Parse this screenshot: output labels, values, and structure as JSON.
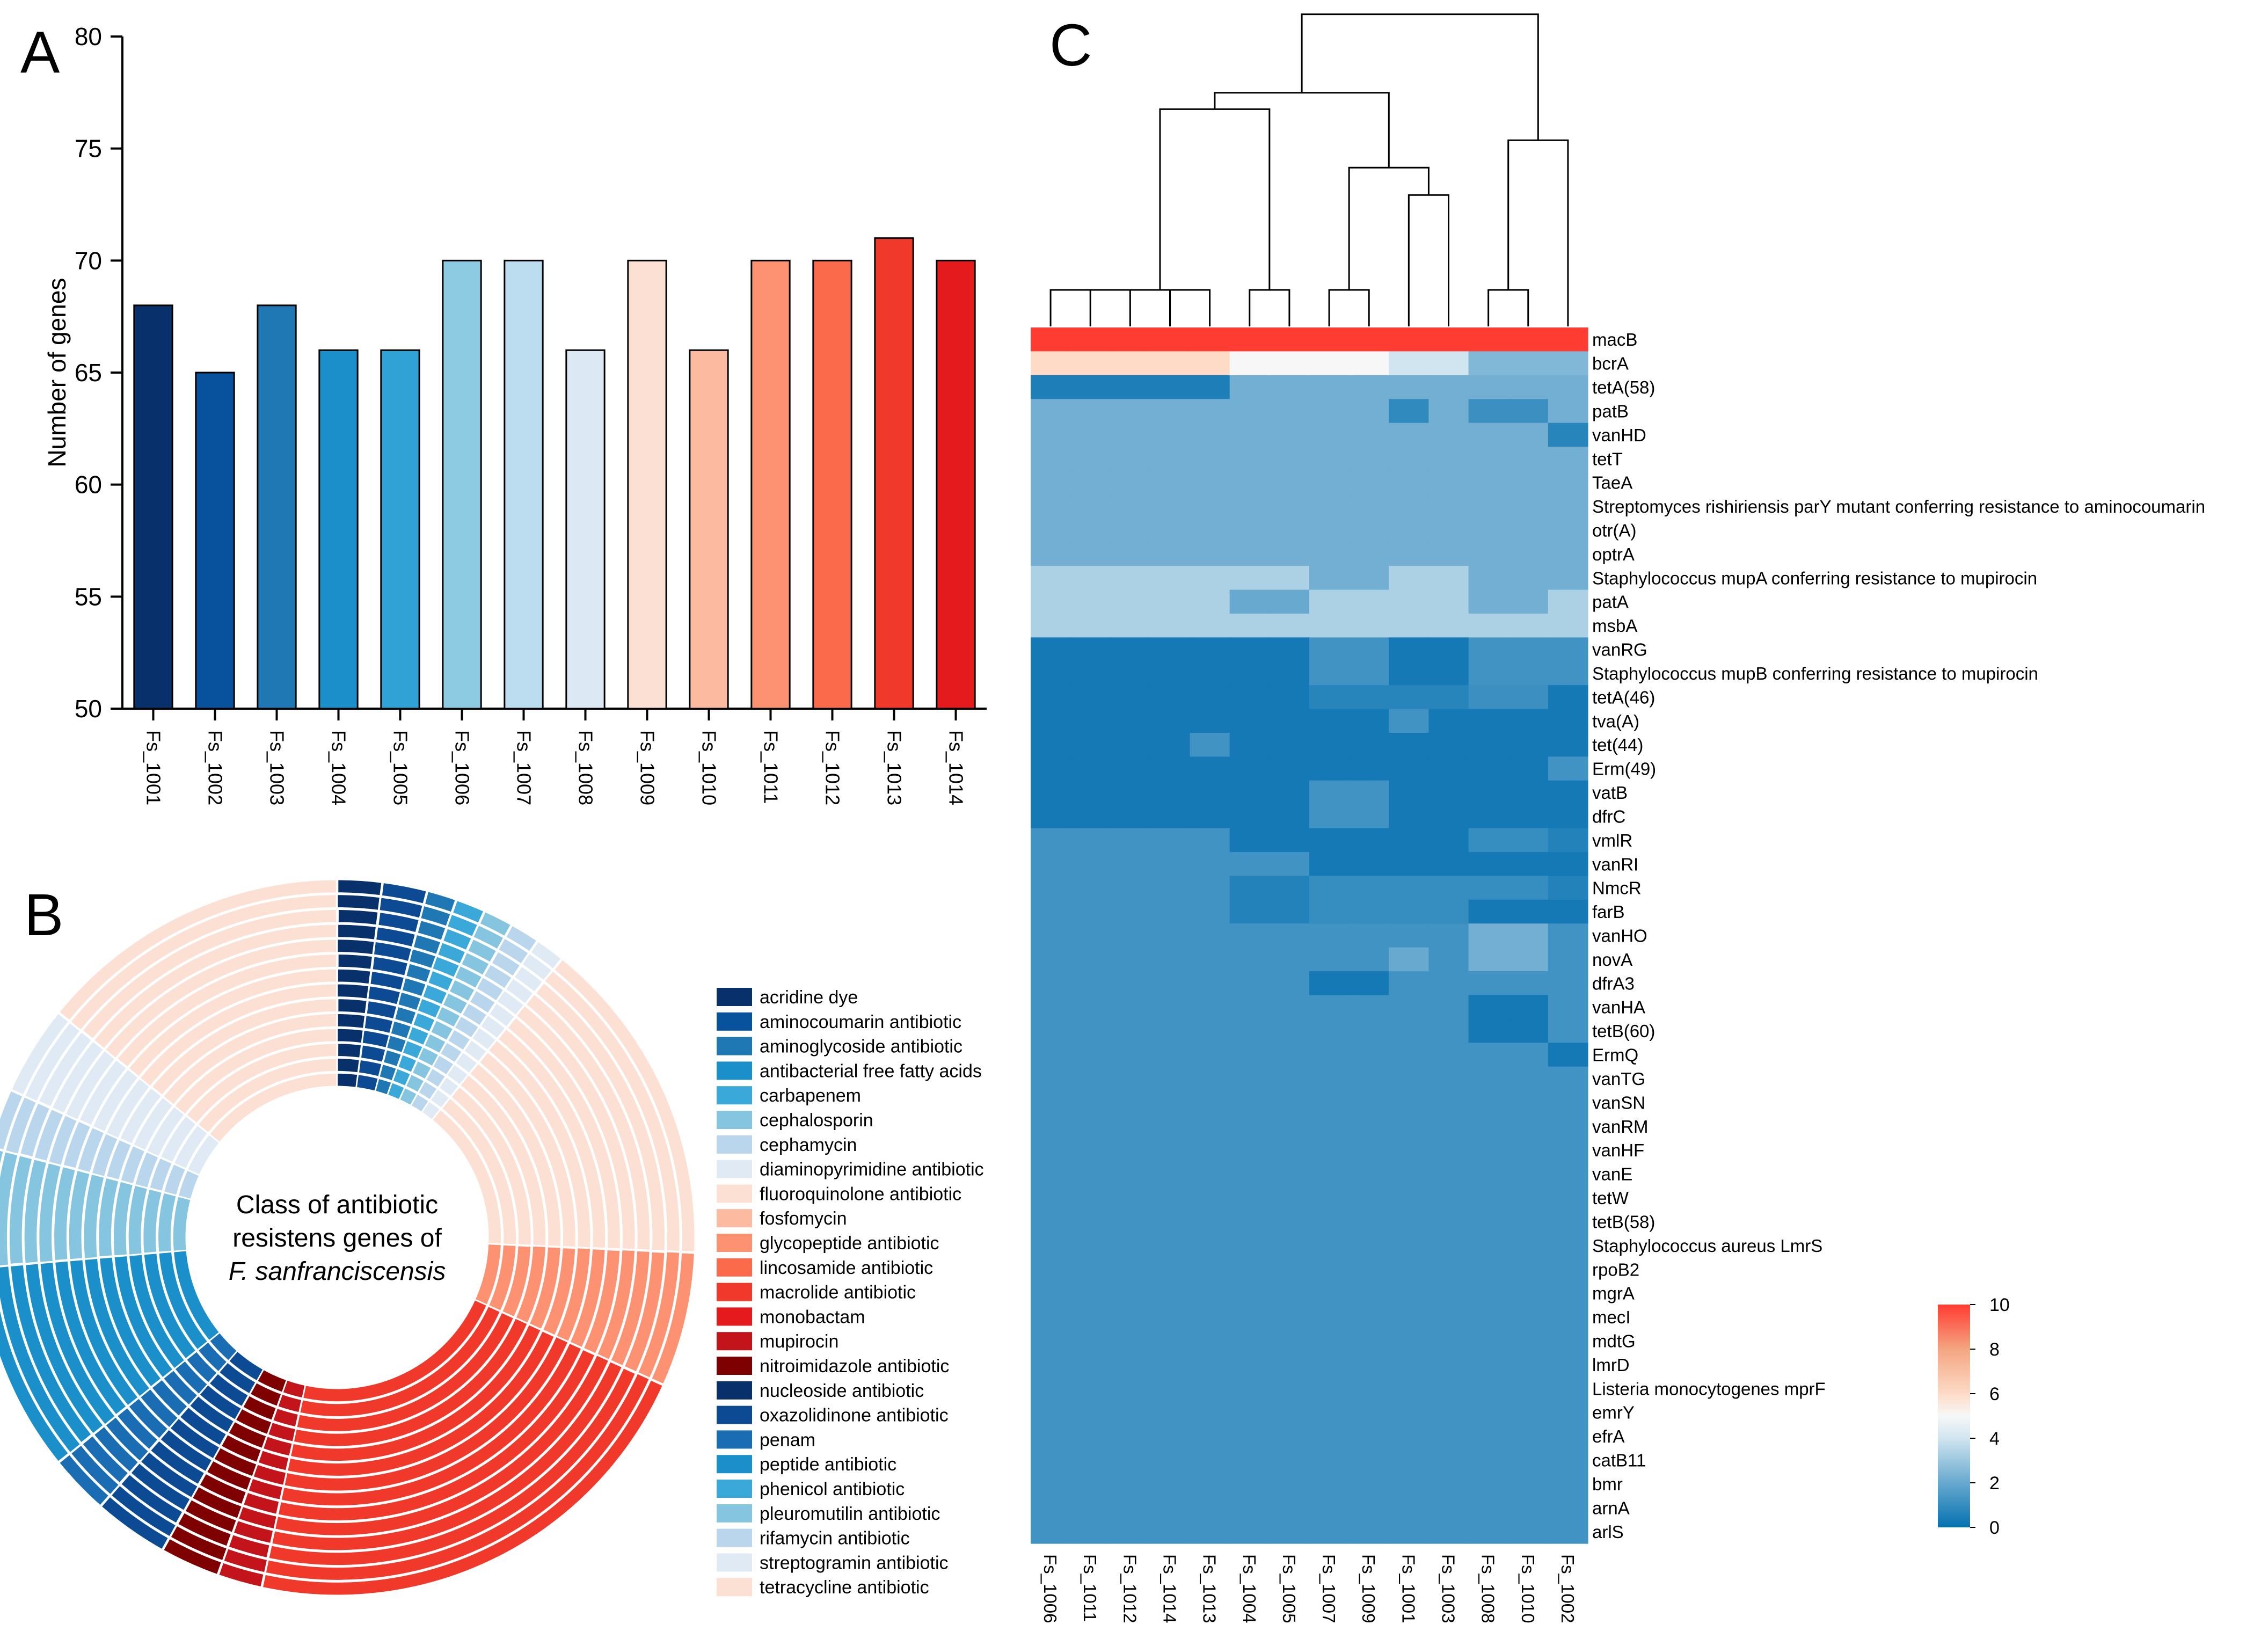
{
  "panel_labels": {
    "a": "A",
    "b": "B",
    "c": "C"
  },
  "chart_data": [
    {
      "id": "A",
      "type": "bar",
      "ylabel": "Number of genes",
      "ylim": [
        50,
        80
      ],
      "yticks": [
        50,
        55,
        60,
        65,
        70,
        75,
        80
      ],
      "categories": [
        "Fs_1001",
        "Fs_1002",
        "Fs_1003",
        "Fs_1004",
        "Fs_1005",
        "Fs_1006",
        "Fs_1007",
        "Fs_1008",
        "Fs_1009",
        "Fs_1010",
        "Fs_1011",
        "Fs_1012",
        "Fs_1013",
        "Fs_1014"
      ],
      "values": [
        68,
        65,
        68,
        66,
        66,
        70,
        70,
        66,
        70,
        66,
        70,
        70,
        71,
        70
      ],
      "colors": [
        "#08306b",
        "#08519c",
        "#1f78b4",
        "#1b8fc9",
        "#31a2d5",
        "#8ccbe2",
        "#bcdcef",
        "#dce9f5",
        "#fde0d4",
        "#fcbba1",
        "#fc9272",
        "#fb6a4a",
        "#f0392b",
        "#e41a1c"
      ]
    },
    {
      "id": "B",
      "type": "donut",
      "center_text": [
        "Class of antibiotic",
        "resistens genes of",
        "F. sanfranciscensis"
      ],
      "rings": 14,
      "legend": [
        {
          "label": "acridine dye",
          "color": "#08306b"
        },
        {
          "label": "aminocoumarin antibiotic",
          "color": "#08519c"
        },
        {
          "label": "aminoglycoside antibiotic",
          "color": "#1f78b4"
        },
        {
          "label": "antibacterial free fatty acids",
          "color": "#1b8fc9"
        },
        {
          "label": "carbapenem",
          "color": "#3aa8d8"
        },
        {
          "label": "cephalosporin",
          "color": "#86c5e0"
        },
        {
          "label": "cephamycin",
          "color": "#b9d6ec"
        },
        {
          "label": "diaminopyrimidine antibiotic",
          "color": "#dfeaf5"
        },
        {
          "label": "fluoroquinolone antibiotic",
          "color": "#fde0d4"
        },
        {
          "label": "fosfomycin",
          "color": "#fcbba1"
        },
        {
          "label": "glycopeptide antibiotic",
          "color": "#fc9272"
        },
        {
          "label": "lincosamide antibiotic",
          "color": "#fb6a4a"
        },
        {
          "label": "macrolide antibiotic",
          "color": "#f0392b"
        },
        {
          "label": "monobactam",
          "color": "#e41a1c"
        },
        {
          "label": "mupirocin",
          "color": "#c3141b"
        },
        {
          "label": "nitroimidazole antibiotic",
          "color": "#7f0000"
        },
        {
          "label": "nucleoside antibiotic",
          "color": "#08306b"
        },
        {
          "label": "oxazolidinone antibiotic",
          "color": "#0c4a93"
        },
        {
          "label": "penam",
          "color": "#1a6db3"
        },
        {
          "label": "peptide antibiotic",
          "color": "#1b8fc9"
        },
        {
          "label": "phenicol antibiotic",
          "color": "#3aa8d8"
        },
        {
          "label": "pleuromutilin antibiotic",
          "color": "#86c5e0"
        },
        {
          "label": "rifamycin antibiotic",
          "color": "#b9d6ec"
        },
        {
          "label": "streptogramin antibiotic",
          "color": "#dfeaf5"
        },
        {
          "label": "tetracycline antibiotic",
          "color": "#fde0d4"
        }
      ],
      "segments": [
        {
          "color": "#08306b",
          "weight": 3
        },
        {
          "color": "#0c4a93",
          "weight": 3
        },
        {
          "color": "#1f78b4",
          "weight": 2
        },
        {
          "color": "#3aa8d8",
          "weight": 2
        },
        {
          "color": "#86c5e0",
          "weight": 2
        },
        {
          "color": "#b9d6ec",
          "weight": 2
        },
        {
          "color": "#dfeaf5",
          "weight": 2
        },
        {
          "color": "#fde0d4",
          "weight": 22
        },
        {
          "color": "#fc9272",
          "weight": 9
        },
        {
          "color": "#f0392b",
          "weight": 32
        },
        {
          "color": "#c3141b",
          "weight": 3
        },
        {
          "color": "#7f0000",
          "weight": 4
        },
        {
          "color": "#0c4a93",
          "weight": 5
        },
        {
          "color": "#1a6db3",
          "weight": 4
        },
        {
          "color": "#1b8fc9",
          "weight": 14
        },
        {
          "color": "#86c5e0",
          "weight": 8
        },
        {
          "color": "#b9d6ec",
          "weight": 4
        },
        {
          "color": "#dfeaf5",
          "weight": 6
        },
        {
          "color": "#fde0d4",
          "weight": 21
        }
      ]
    },
    {
      "id": "C",
      "type": "heatmap",
      "columns": [
        "Fs_1006",
        "Fs_1011",
        "Fs_1012",
        "Fs_1014",
        "Fs_1013",
        "Fs_1004",
        "Fs_1005",
        "Fs_1007",
        "Fs_1009",
        "Fs_1001",
        "Fs_1003",
        "Fs_1008",
        "Fs_1010",
        "Fs_1002"
      ],
      "rows": [
        "macB",
        "bcrA",
        "tetA(58)",
        "patB",
        "vanHD",
        "tetT",
        "TaeA",
        "Streptomyces rishiriensis parY mutant conferring resistance to aminocoumarin",
        "otr(A)",
        "optrA",
        "Staphylococcus mupA conferring resistance to mupirocin",
        "patA",
        "msbA",
        "vanRG",
        "Staphylococcus mupB conferring resistance to mupirocin",
        "tetA(46)",
        "tva(A)",
        "tet(44)",
        "Erm(49)",
        "vatB",
        "dfrC",
        "vmlR",
        "vanRI",
        "NmcR",
        "farB",
        "vanHO",
        "novA",
        "dfrA3",
        "vanHA",
        "tetB(60)",
        "ErmQ",
        "vanTG",
        "vanSN",
        "vanRM",
        "vanHF",
        "vanE",
        "tetW",
        "tetB(58)",
        "Staphylococcus aureus LmrS",
        "rpoB2",
        "mgrA",
        "mecI",
        "mdtG",
        "lmrD",
        "Listeria monocytogenes mprF",
        "emrY",
        "efrA",
        "catB11",
        "bmr",
        "arnA",
        "arlS"
      ],
      "values": [
        [
          10,
          10,
          10,
          10,
          10,
          10,
          10,
          10,
          10,
          10,
          10,
          10,
          10,
          10
        ],
        [
          6,
          6,
          6,
          6,
          6,
          5,
          5,
          5,
          5,
          4,
          4,
          2.5,
          2.5,
          2.5
        ],
        [
          0.5,
          0.5,
          0.5,
          0.5,
          0.5,
          2.2,
          2.2,
          2.2,
          2.2,
          2.2,
          2.2,
          2.2,
          2.2,
          2.2
        ],
        [
          2.2,
          2.2,
          2.2,
          2.2,
          2.2,
          2.2,
          2.2,
          2.2,
          2.2,
          0.9,
          2.2,
          1.1,
          1.1,
          2.2
        ],
        [
          2.2,
          2.2,
          2.2,
          2.2,
          2.2,
          2.2,
          2.2,
          2.2,
          2.2,
          2.2,
          2.2,
          2.2,
          2.2,
          0.7
        ],
        [
          2.2,
          2.2,
          2.2,
          2.2,
          2.2,
          2.2,
          2.2,
          2.2,
          2.2,
          2.2,
          2.2,
          2.2,
          2.2,
          2.2
        ],
        [
          2.2,
          2.2,
          2.2,
          2.2,
          2.2,
          2.2,
          2.2,
          2.2,
          2.2,
          2.2,
          2.2,
          2.2,
          2.2,
          2.2
        ],
        [
          2.2,
          2.2,
          2.2,
          2.2,
          2.2,
          2.2,
          2.2,
          2.2,
          2.2,
          2.2,
          2.2,
          2.2,
          2.2,
          2.2
        ],
        [
          2.2,
          2.2,
          2.2,
          2.2,
          2.2,
          2.2,
          2.2,
          2.2,
          2.2,
          2.2,
          2.2,
          2.2,
          2.2,
          2.2
        ],
        [
          2.2,
          2.2,
          2.2,
          2.2,
          2.2,
          2.2,
          2.2,
          2.2,
          2.2,
          2.2,
          2.2,
          2.2,
          2.2,
          2.2
        ],
        [
          3.3,
          3.3,
          3.3,
          3.3,
          3.3,
          3.3,
          3.3,
          2.2,
          2.2,
          3.3,
          3.3,
          2.2,
          2.2,
          2.2
        ],
        [
          3.3,
          3.3,
          3.3,
          3.3,
          3.3,
          2.0,
          2.0,
          3.3,
          3.3,
          3.3,
          3.3,
          2.2,
          2.2,
          3.3
        ],
        [
          3.3,
          3.3,
          3.3,
          3.3,
          3.3,
          3.3,
          3.3,
          3.3,
          3.3,
          3.3,
          3.3,
          3.3,
          3.3,
          3.3
        ],
        [
          0.3,
          0.3,
          0.3,
          0.3,
          0.3,
          0.3,
          0.3,
          1.2,
          1.2,
          0.3,
          0.3,
          1.2,
          1.2,
          1.2
        ],
        [
          0.3,
          0.3,
          0.3,
          0.3,
          0.3,
          0.3,
          0.3,
          1.2,
          1.2,
          0.3,
          0.3,
          1.2,
          1.2,
          1.2
        ],
        [
          0.3,
          0.3,
          0.3,
          0.3,
          0.3,
          0.3,
          0.3,
          0.7,
          0.7,
          0.7,
          0.7,
          1.1,
          1.1,
          0.3
        ],
        [
          0.3,
          0.3,
          0.3,
          0.3,
          0.3,
          0.3,
          0.3,
          0.3,
          0.3,
          1.2,
          0.3,
          0.3,
          0.3,
          0.3
        ],
        [
          0.3,
          0.3,
          0.3,
          0.3,
          1.2,
          0.3,
          0.3,
          0.3,
          0.3,
          0.3,
          0.3,
          0.3,
          0.3,
          0.3
        ],
        [
          0.3,
          0.3,
          0.3,
          0.3,
          0.3,
          0.3,
          0.3,
          0.3,
          0.3,
          0.3,
          0.3,
          0.3,
          0.3,
          1.2
        ],
        [
          0.3,
          0.3,
          0.3,
          0.3,
          0.3,
          0.3,
          0.3,
          1.2,
          1.2,
          0.3,
          0.3,
          0.3,
          0.3,
          0.3
        ],
        [
          0.3,
          0.3,
          0.3,
          0.3,
          0.3,
          0.3,
          0.3,
          1.2,
          1.2,
          0.3,
          0.3,
          0.3,
          0.3,
          0.3
        ],
        [
          1.2,
          1.2,
          1.2,
          1.2,
          1.2,
          0.3,
          0.3,
          0.3,
          0.3,
          0.3,
          0.3,
          1.0,
          1.0,
          0.6
        ],
        [
          1.2,
          1.2,
          1.2,
          1.2,
          1.2,
          1.2,
          1.2,
          0.3,
          0.3,
          0.3,
          0.3,
          0.3,
          0.3,
          0.3
        ],
        [
          1.2,
          1.2,
          1.2,
          1.2,
          1.2,
          0.6,
          0.6,
          1.0,
          1.0,
          1.0,
          1.0,
          1.0,
          1.0,
          0.6
        ],
        [
          1.2,
          1.2,
          1.2,
          1.2,
          1.2,
          0.6,
          0.6,
          1.0,
          1.0,
          1.0,
          1.0,
          0.3,
          0.3,
          0.3
        ],
        [
          1.2,
          1.2,
          1.2,
          1.2,
          1.2,
          1.2,
          1.2,
          1.2,
          1.2,
          1.2,
          1.2,
          2.2,
          2.2,
          1.2
        ],
        [
          1.2,
          1.2,
          1.2,
          1.2,
          1.2,
          1.2,
          1.2,
          1.2,
          1.2,
          2.0,
          1.2,
          2.2,
          2.2,
          1.2
        ],
        [
          1.2,
          1.2,
          1.2,
          1.2,
          1.2,
          1.2,
          1.2,
          0.3,
          0.3,
          1.2,
          1.2,
          1.2,
          1.2,
          1.2
        ],
        [
          1.2,
          1.2,
          1.2,
          1.2,
          1.2,
          1.2,
          1.2,
          1.2,
          1.2,
          1.2,
          1.2,
          0.3,
          0.3,
          1.2
        ],
        [
          1.2,
          1.2,
          1.2,
          1.2,
          1.2,
          1.2,
          1.2,
          1.2,
          1.2,
          1.2,
          1.2,
          0.3,
          0.3,
          1.2
        ],
        [
          1.2,
          1.2,
          1.2,
          1.2,
          1.2,
          1.2,
          1.2,
          1.2,
          1.2,
          1.2,
          1.2,
          1.2,
          1.2,
          0.3
        ],
        [
          1.2,
          1.2,
          1.2,
          1.2,
          1.2,
          1.2,
          1.2,
          1.2,
          1.2,
          1.2,
          1.2,
          1.2,
          1.2,
          1.2
        ],
        [
          1.2,
          1.2,
          1.2,
          1.2,
          1.2,
          1.2,
          1.2,
          1.2,
          1.2,
          1.2,
          1.2,
          1.2,
          1.2,
          1.2
        ],
        [
          1.2,
          1.2,
          1.2,
          1.2,
          1.2,
          1.2,
          1.2,
          1.2,
          1.2,
          1.2,
          1.2,
          1.2,
          1.2,
          1.2
        ],
        [
          1.2,
          1.2,
          1.2,
          1.2,
          1.2,
          1.2,
          1.2,
          1.2,
          1.2,
          1.2,
          1.2,
          1.2,
          1.2,
          1.2
        ],
        [
          1.2,
          1.2,
          1.2,
          1.2,
          1.2,
          1.2,
          1.2,
          1.2,
          1.2,
          1.2,
          1.2,
          1.2,
          1.2,
          1.2
        ],
        [
          1.2,
          1.2,
          1.2,
          1.2,
          1.2,
          1.2,
          1.2,
          1.2,
          1.2,
          1.2,
          1.2,
          1.2,
          1.2,
          1.2
        ],
        [
          1.2,
          1.2,
          1.2,
          1.2,
          1.2,
          1.2,
          1.2,
          1.2,
          1.2,
          1.2,
          1.2,
          1.2,
          1.2,
          1.2
        ],
        [
          1.2,
          1.2,
          1.2,
          1.2,
          1.2,
          1.2,
          1.2,
          1.2,
          1.2,
          1.2,
          1.2,
          1.2,
          1.2,
          1.2
        ],
        [
          1.2,
          1.2,
          1.2,
          1.2,
          1.2,
          1.2,
          1.2,
          1.2,
          1.2,
          1.2,
          1.2,
          1.2,
          1.2,
          1.2
        ],
        [
          1.2,
          1.2,
          1.2,
          1.2,
          1.2,
          1.2,
          1.2,
          1.2,
          1.2,
          1.2,
          1.2,
          1.2,
          1.2,
          1.2
        ],
        [
          1.2,
          1.2,
          1.2,
          1.2,
          1.2,
          1.2,
          1.2,
          1.2,
          1.2,
          1.2,
          1.2,
          1.2,
          1.2,
          1.2
        ],
        [
          1.2,
          1.2,
          1.2,
          1.2,
          1.2,
          1.2,
          1.2,
          1.2,
          1.2,
          1.2,
          1.2,
          1.2,
          1.2,
          1.2
        ],
        [
          1.2,
          1.2,
          1.2,
          1.2,
          1.2,
          1.2,
          1.2,
          1.2,
          1.2,
          1.2,
          1.2,
          1.2,
          1.2,
          1.2
        ],
        [
          1.2,
          1.2,
          1.2,
          1.2,
          1.2,
          1.2,
          1.2,
          1.2,
          1.2,
          1.2,
          1.2,
          1.2,
          1.2,
          1.2
        ],
        [
          1.2,
          1.2,
          1.2,
          1.2,
          1.2,
          1.2,
          1.2,
          1.2,
          1.2,
          1.2,
          1.2,
          1.2,
          1.2,
          1.2
        ],
        [
          1.2,
          1.2,
          1.2,
          1.2,
          1.2,
          1.2,
          1.2,
          1.2,
          1.2,
          1.2,
          1.2,
          1.2,
          1.2,
          1.2
        ],
        [
          1.2,
          1.2,
          1.2,
          1.2,
          1.2,
          1.2,
          1.2,
          1.2,
          1.2,
          1.2,
          1.2,
          1.2,
          1.2,
          1.2
        ],
        [
          1.2,
          1.2,
          1.2,
          1.2,
          1.2,
          1.2,
          1.2,
          1.2,
          1.2,
          1.2,
          1.2,
          1.2,
          1.2,
          1.2
        ],
        [
          1.2,
          1.2,
          1.2,
          1.2,
          1.2,
          1.2,
          1.2,
          1.2,
          1.2,
          1.2,
          1.2,
          1.2,
          1.2,
          1.2
        ],
        [
          1.2,
          1.2,
          1.2,
          1.2,
          1.2,
          1.2,
          1.2,
          1.2,
          1.2,
          1.2,
          1.2,
          1.2,
          1.2,
          1.2
        ]
      ],
      "color_scale": {
        "min": 0,
        "max": 10,
        "ticks": [
          0,
          2,
          4,
          6,
          8,
          10
        ]
      },
      "dendrogram": [
        {
          "a": 0,
          "b": 1,
          "height": 1.0
        },
        {
          "a": 2,
          "b": 3,
          "height": 1.0
        },
        {
          "a": 4,
          "b": 5,
          "height": 1.0
        },
        {
          "a": 6,
          "b": 7,
          "height": 1.0
        },
        {
          "a": 8,
          "b": 9,
          "height": 1.0
        },
        {
          "a": 10,
          "b": 11,
          "height": 3.6
        },
        {
          "a": 12,
          "b": 13,
          "height": 1.0
        },
        {
          "a": 14,
          "b": 15,
          "height": 4.35
        },
        {
          "a": 16,
          "b": 17,
          "height": 5.1
        },
        {
          "a": 18,
          "b": 19,
          "height": 5.95
        },
        {
          "a": 20,
          "b": 21,
          "height": 6.4
        },
        {
          "a": 22,
          "b": 23,
          "height": 7.0
        },
        {
          "a": 24,
          "b": 25,
          "height": 8.55
        }
      ]
    }
  ]
}
